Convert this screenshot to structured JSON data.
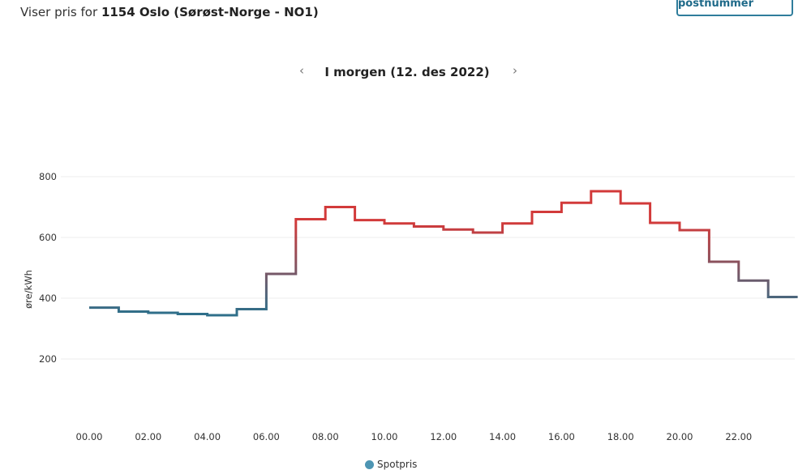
{
  "header": {
    "location_prefix": "Viser pris for",
    "location_name": "1154 Oslo (Sørøst-Norge - NO1)",
    "change_button": "Endre postnummer"
  },
  "date_nav": {
    "title": "I morgen (12. des 2022)",
    "prev_glyph": "‹",
    "next_glyph": "›"
  },
  "chart_data": {
    "type": "line",
    "step": true,
    "ylabel": "øre/kWh",
    "xlabel": "",
    "categories": [
      "00.00",
      "01.00",
      "02.00",
      "03.00",
      "04.00",
      "05.00",
      "06.00",
      "07.00",
      "08.00",
      "09.00",
      "10.00",
      "11.00",
      "12.00",
      "13.00",
      "14.00",
      "15.00",
      "16.00",
      "17.00",
      "18.00",
      "19.00",
      "20.00",
      "21.00",
      "22.00",
      "23.00"
    ],
    "x_tick_labels": [
      "00.00",
      "02.00",
      "04.00",
      "06.00",
      "08.00",
      "10.00",
      "12.00",
      "14.00",
      "16.00",
      "18.00",
      "20.00",
      "22.00"
    ],
    "y_ticks": [
      200,
      400,
      600,
      800
    ],
    "ylim": [
      100,
      850
    ],
    "grid": true,
    "legend_position": "bottom",
    "color_scale": {
      "low": "#2f6f8a",
      "high": "#d23a3a",
      "low_value": 350,
      "high_value": 650
    },
    "series": [
      {
        "name": "Spotpris",
        "color": "#4d95b3",
        "values": [
          369,
          356,
          352,
          348,
          344,
          364,
          480,
          660,
          700,
          657,
          646,
          636,
          626,
          616,
          646,
          684,
          714,
          752,
          712,
          648,
          624,
          520,
          458,
          404
        ]
      }
    ]
  }
}
